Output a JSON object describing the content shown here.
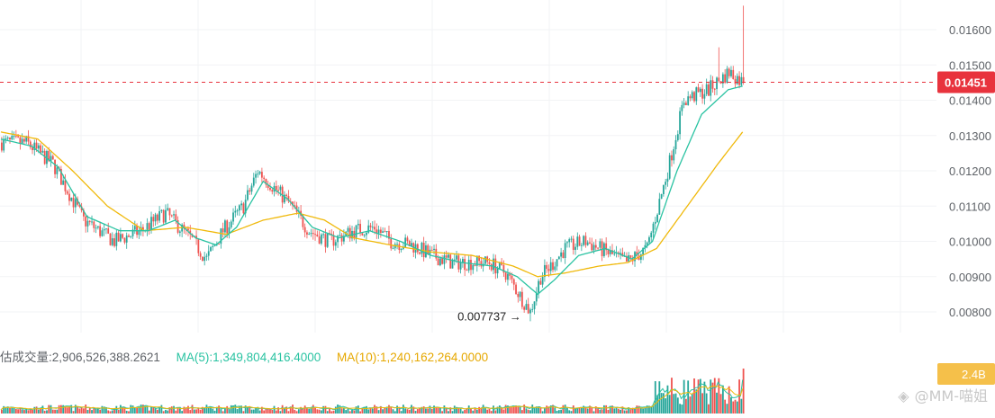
{
  "colors": {
    "up": "#26a69a",
    "down": "#ef5350",
    "ma_short": "#2ac3a2",
    "ma_long": "#f0b90b",
    "price_line": "#e8333d",
    "grid": "#f2f3f5",
    "axis_text": "#5f6368"
  },
  "volume_legend": {
    "volume": "估成交量:2,906,526,388.2621",
    "ma5": "MA(5):1,349,804,416.4000",
    "ma10": "MA(10):1,240,162,264.0000"
  },
  "watermark": "@MM-喵姐",
  "chart_data": {
    "type": "candlestick",
    "y_axis": {
      "range": [
        0.0076,
        0.0166
      ],
      "ticks": [
        "0.01600",
        "0.01500",
        "0.01400",
        "0.01300",
        "0.01200",
        "0.01100",
        "0.01000",
        "0.00900",
        "0.00800"
      ]
    },
    "current_price": {
      "value": 0.01451,
      "label": "0.01451"
    },
    "low_annotation": {
      "value": 0.007737,
      "label": "0.007737 →"
    },
    "volume_axis_label": "2.4B",
    "price_trend_anchors": [
      [
        0,
        0.0128
      ],
      [
        12,
        0.0128
      ],
      [
        25,
        0.0122
      ],
      [
        40,
        0.0106
      ],
      [
        55,
        0.01
      ],
      [
        68,
        0.0103
      ],
      [
        80,
        0.0108
      ],
      [
        92,
        0.0101
      ],
      [
        100,
        0.0095
      ],
      [
        108,
        0.0103
      ],
      [
        118,
        0.011
      ],
      [
        125,
        0.012
      ],
      [
        140,
        0.0111
      ],
      [
        150,
        0.0103
      ],
      [
        160,
        0.01
      ],
      [
        172,
        0.0103
      ],
      [
        182,
        0.0104
      ],
      [
        190,
        0.01
      ],
      [
        200,
        0.0099
      ],
      [
        210,
        0.0096
      ],
      [
        220,
        0.0094
      ],
      [
        232,
        0.0094
      ],
      [
        238,
        0.0094
      ],
      [
        246,
        0.0091
      ],
      [
        258,
        0.008
      ],
      [
        263,
        0.009
      ],
      [
        268,
        0.0093
      ],
      [
        275,
        0.0098
      ],
      [
        285,
        0.01
      ],
      [
        295,
        0.0097
      ],
      [
        305,
        0.0094
      ],
      [
        315,
        0.0098
      ],
      [
        325,
        0.012
      ],
      [
        333,
        0.014
      ],
      [
        345,
        0.0143
      ],
      [
        355,
        0.0148
      ],
      [
        362,
        0.0145
      ]
    ],
    "ma_short_anchors": [
      [
        0,
        0.0129
      ],
      [
        15,
        0.0127
      ],
      [
        28,
        0.0121
      ],
      [
        42,
        0.0107
      ],
      [
        58,
        0.0103
      ],
      [
        72,
        0.0103
      ],
      [
        85,
        0.0106
      ],
      [
        95,
        0.0101
      ],
      [
        105,
        0.0099
      ],
      [
        115,
        0.0104
      ],
      [
        128,
        0.0117
      ],
      [
        140,
        0.0112
      ],
      [
        152,
        0.0104
      ],
      [
        165,
        0.0101
      ],
      [
        180,
        0.0103
      ],
      [
        195,
        0.01
      ],
      [
        210,
        0.0096
      ],
      [
        225,
        0.0094
      ],
      [
        240,
        0.0093
      ],
      [
        252,
        0.009
      ],
      [
        262,
        0.0085
      ],
      [
        270,
        0.0089
      ],
      [
        282,
        0.0096
      ],
      [
        295,
        0.0098
      ],
      [
        308,
        0.0095
      ],
      [
        318,
        0.01
      ],
      [
        330,
        0.012
      ],
      [
        342,
        0.0136
      ],
      [
        355,
        0.0143
      ],
      [
        362,
        0.0144
      ]
    ],
    "ma_long_anchors": [
      [
        0,
        0.0131
      ],
      [
        18,
        0.0129
      ],
      [
        35,
        0.012
      ],
      [
        52,
        0.011
      ],
      [
        70,
        0.0103
      ],
      [
        90,
        0.0104
      ],
      [
        110,
        0.0102
      ],
      [
        128,
        0.0106
      ],
      [
        145,
        0.0108
      ],
      [
        158,
        0.0106
      ],
      [
        172,
        0.0101
      ],
      [
        190,
        0.0099
      ],
      [
        210,
        0.0097
      ],
      [
        230,
        0.0096
      ],
      [
        250,
        0.0093
      ],
      [
        262,
        0.009
      ],
      [
        275,
        0.0091
      ],
      [
        292,
        0.0093
      ],
      [
        306,
        0.0094
      ],
      [
        320,
        0.0098
      ],
      [
        335,
        0.011
      ],
      [
        350,
        0.0122
      ],
      [
        362,
        0.0131
      ]
    ]
  }
}
